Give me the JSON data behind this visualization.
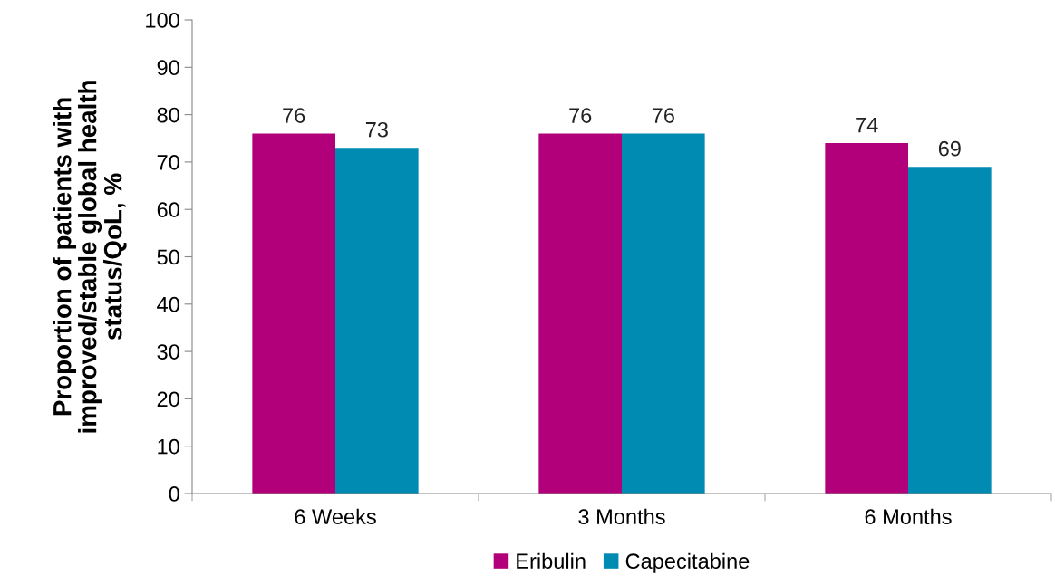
{
  "chart_data": {
    "type": "bar",
    "ylabel": "Proportion of patients with\nimproved/stable global health\nstatus/QoL, %",
    "categories": [
      "6 Weeks",
      "3 Months",
      "6 Months"
    ],
    "series": [
      {
        "name": "Eribulin",
        "color": "#b1007a",
        "values": [
          76,
          76,
          74
        ]
      },
      {
        "name": "Capecitabine",
        "color": "#008bb2",
        "values": [
          73,
          76,
          69
        ]
      }
    ],
    "ylim": [
      0,
      100
    ],
    "yticks": [
      0,
      10,
      20,
      30,
      40,
      50,
      60,
      70,
      80,
      90,
      100
    ],
    "data_labels": true,
    "grid": false,
    "legend": "bottom"
  }
}
